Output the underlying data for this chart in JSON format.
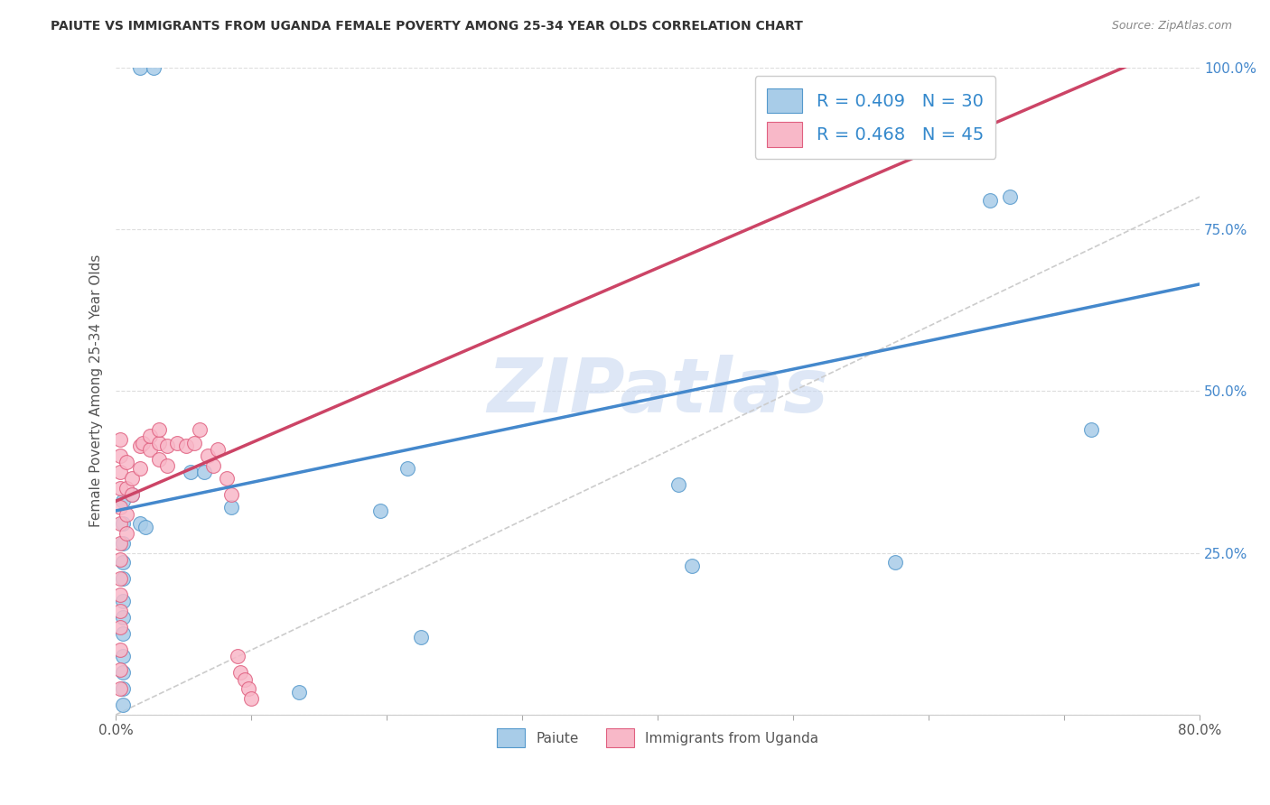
{
  "title": "PAIUTE VS IMMIGRANTS FROM UGANDA FEMALE POVERTY AMONG 25-34 YEAR OLDS CORRELATION CHART",
  "source": "Source: ZipAtlas.com",
  "ylabel": "Female Poverty Among 25-34 Year Olds",
  "xlim": [
    0.0,
    0.8
  ],
  "ylim": [
    0.0,
    1.0
  ],
  "legend1_label": "R = 0.409   N = 30",
  "legend2_label": "R = 0.468   N = 45",
  "legend_bottom_label1": "Paiute",
  "legend_bottom_label2": "Immigrants from Uganda",
  "blue_color": "#a8cce8",
  "pink_color": "#f8b8c8",
  "blue_edge_color": "#5599cc",
  "pink_edge_color": "#e06080",
  "blue_line_color": "#4488cc",
  "pink_line_color": "#cc4466",
  "watermark": "ZIPatlas",
  "watermark_color": "#c8d8f0",
  "blue_trend_x0": 0.0,
  "blue_trend_y0": 0.315,
  "blue_trend_x1": 0.8,
  "blue_trend_y1": 0.665,
  "pink_trend_x0": 0.0,
  "pink_trend_y0": 0.33,
  "pink_trend_x1": 0.1,
  "pink_trend_y1": 0.42,
  "paiute_x": [
    0.018,
    0.028,
    0.005,
    0.005,
    0.005,
    0.005,
    0.005,
    0.005,
    0.005,
    0.005,
    0.005,
    0.005,
    0.005,
    0.005,
    0.012,
    0.018,
    0.022,
    0.055,
    0.065,
    0.085,
    0.135,
    0.195,
    0.215,
    0.225,
    0.415,
    0.425,
    0.575,
    0.645,
    0.66,
    0.72
  ],
  "paiute_y": [
    1.0,
    1.0,
    0.33,
    0.295,
    0.265,
    0.235,
    0.21,
    0.175,
    0.15,
    0.125,
    0.09,
    0.065,
    0.04,
    0.015,
    0.34,
    0.295,
    0.29,
    0.375,
    0.375,
    0.32,
    0.035,
    0.315,
    0.38,
    0.12,
    0.355,
    0.23,
    0.235,
    0.795,
    0.8,
    0.44
  ],
  "uganda_x": [
    0.003,
    0.003,
    0.003,
    0.003,
    0.003,
    0.003,
    0.003,
    0.003,
    0.003,
    0.003,
    0.003,
    0.003,
    0.003,
    0.003,
    0.003,
    0.008,
    0.008,
    0.008,
    0.008,
    0.012,
    0.012,
    0.018,
    0.018,
    0.02,
    0.025,
    0.025,
    0.032,
    0.032,
    0.032,
    0.038,
    0.038,
    0.045,
    0.052,
    0.058,
    0.062,
    0.068,
    0.072,
    0.075,
    0.082,
    0.085,
    0.09,
    0.092,
    0.095,
    0.098,
    0.1
  ],
  "uganda_y": [
    0.425,
    0.4,
    0.375,
    0.35,
    0.32,
    0.295,
    0.265,
    0.24,
    0.21,
    0.185,
    0.16,
    0.135,
    0.1,
    0.07,
    0.04,
    0.39,
    0.35,
    0.31,
    0.28,
    0.365,
    0.34,
    0.415,
    0.38,
    0.42,
    0.41,
    0.43,
    0.42,
    0.44,
    0.395,
    0.415,
    0.385,
    0.42,
    0.415,
    0.42,
    0.44,
    0.4,
    0.385,
    0.41,
    0.365,
    0.34,
    0.09,
    0.065,
    0.055,
    0.04,
    0.025
  ]
}
